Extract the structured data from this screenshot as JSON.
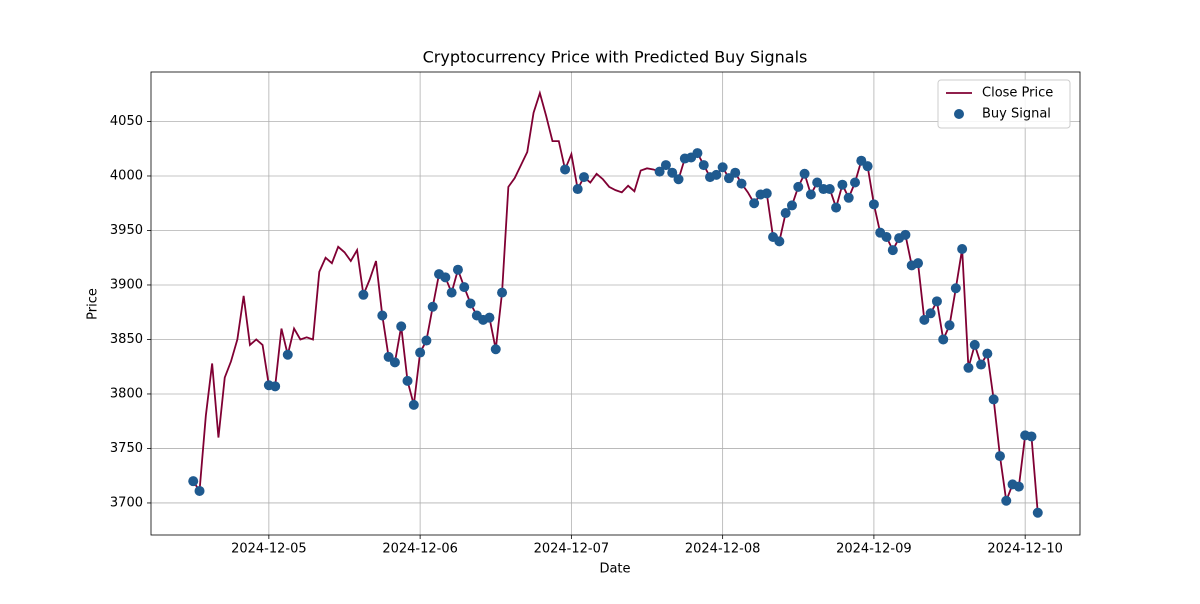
{
  "chart_data": {
    "type": "line-scatter",
    "title": "Cryptocurrency Price with Predicted Buy Signals",
    "x_label": "Date",
    "y_label": "Price",
    "categories": [
      null,
      null,
      null,
      null,
      null,
      null,
      null,
      null,
      null,
      null,
      null,
      null,
      "2024-12-05",
      null,
      null,
      null,
      null,
      null,
      null,
      null,
      null,
      null,
      null,
      null,
      null,
      null,
      null,
      null,
      null,
      null,
      null,
      null,
      null,
      null,
      null,
      null,
      "2024-12-06",
      null,
      null,
      null,
      null,
      null,
      null,
      null,
      null,
      null,
      null,
      null,
      null,
      null,
      null,
      null,
      null,
      null,
      null,
      null,
      null,
      null,
      null,
      null,
      "2024-12-07",
      null,
      null,
      null,
      null,
      null,
      null,
      null,
      null,
      null,
      null,
      null,
      null,
      null,
      null,
      null,
      null,
      null,
      null,
      null,
      null,
      null,
      null,
      null,
      "2024-12-08",
      null,
      null,
      null,
      null,
      null,
      null,
      null,
      null,
      null,
      null,
      null,
      null,
      null,
      null,
      null,
      null,
      null,
      null,
      null,
      null,
      null,
      null,
      null,
      "2024-12-09",
      null,
      null,
      null,
      null,
      null,
      null,
      null,
      null,
      null,
      null,
      null,
      null,
      null,
      null,
      null,
      null,
      null,
      null,
      null,
      null,
      null,
      null,
      null,
      "2024-12-10",
      null,
      null
    ],
    "series": [
      {
        "name": "Close Price",
        "kind": "line",
        "color": "#800033",
        "values": [
          3720,
          3711,
          3780,
          3828,
          3760,
          3815,
          3830,
          3850,
          3890,
          3845,
          3850,
          3845,
          3808,
          3807,
          3860,
          3836,
          3860,
          3850,
          3852,
          3850,
          3912,
          3925,
          3920,
          3935,
          3930,
          3922,
          3932,
          3891,
          3905,
          3922,
          3872,
          3834,
          3829,
          3862,
          3812,
          3790,
          3838,
          3849,
          3880,
          3910,
          3907,
          3893,
          3914,
          3898,
          3883,
          3872,
          3868,
          3870,
          3841,
          3893,
          3990,
          3998,
          4010,
          4022,
          4058,
          4076,
          4055,
          4032,
          4032,
          4006,
          4020,
          3988,
          3999,
          3994,
          4002,
          3997,
          3990,
          3987,
          3985,
          3991,
          3986,
          4005,
          4007,
          4006,
          4004,
          4010,
          4003,
          3997,
          4016,
          4017,
          4021,
          4010,
          3999,
          4001,
          4008,
          3998,
          4003,
          3993,
          3985,
          3975,
          3983,
          3984,
          3944,
          3940,
          3966,
          3973,
          3990,
          4002,
          3983,
          3994,
          3988,
          3988,
          3971,
          3992,
          3980,
          3994,
          4014,
          4009,
          3974,
          3948,
          3944,
          3932,
          3943,
          3946,
          3918,
          3920,
          3868,
          3874,
          3885,
          3850,
          3863,
          3897,
          3933,
          3824,
          3845,
          3827,
          3837,
          3795,
          3743,
          3702,
          3717,
          3715,
          3762,
          3761,
          3691
        ]
      },
      {
        "name": "Buy Signal",
        "kind": "scatter",
        "color": "#1f5a8f",
        "values": [
          3720,
          3711,
          null,
          null,
          null,
          null,
          null,
          null,
          null,
          null,
          null,
          null,
          3808,
          3807,
          null,
          3836,
          null,
          null,
          null,
          null,
          null,
          null,
          null,
          null,
          null,
          null,
          null,
          3891,
          null,
          null,
          3872,
          3834,
          3829,
          3862,
          3812,
          3790,
          3838,
          3849,
          3880,
          3910,
          3907,
          3893,
          3914,
          3898,
          3883,
          3872,
          3868,
          3870,
          3841,
          3893,
          null,
          null,
          null,
          null,
          null,
          null,
          null,
          null,
          null,
          4006,
          null,
          3988,
          3999,
          null,
          null,
          null,
          null,
          null,
          null,
          null,
          null,
          null,
          null,
          null,
          4004,
          4010,
          4003,
          3997,
          4016,
          4017,
          4021,
          4010,
          3999,
          4001,
          4008,
          3998,
          4003,
          3993,
          null,
          3975,
          3983,
          3984,
          3944,
          3940,
          3966,
          3973,
          3990,
          4002,
          3983,
          3994,
          3988,
          3988,
          3971,
          3992,
          3980,
          3994,
          4014,
          4009,
          3974,
          3948,
          3944,
          3932,
          3943,
          3946,
          3918,
          3920,
          3868,
          3874,
          3885,
          3850,
          3863,
          3897,
          3933,
          3824,
          3845,
          3827,
          3837,
          3795,
          3743,
          3702,
          3717,
          3715,
          3762,
          3761,
          3691
        ]
      }
    ],
    "ylim": [
      3670.6,
      4095.4
    ],
    "yticks": [
      3700,
      3750,
      3800,
      3850,
      3900,
      3950,
      4000,
      4050
    ],
    "grid": true,
    "legend": "upper right"
  }
}
